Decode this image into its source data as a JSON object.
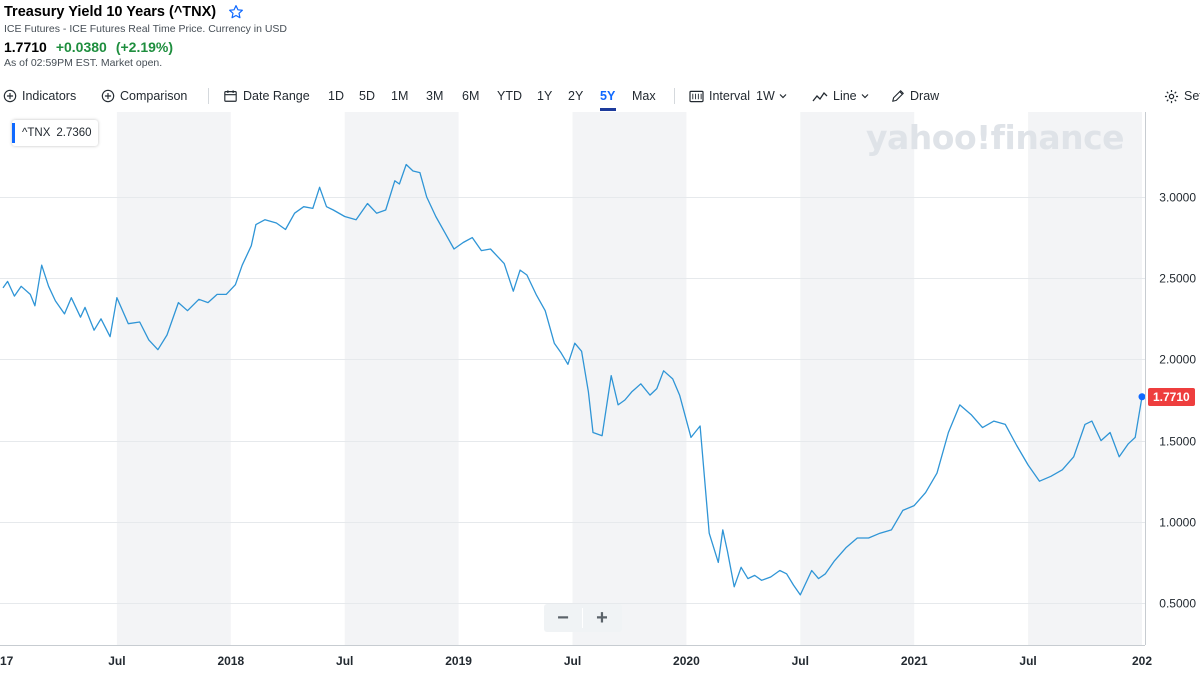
{
  "header": {
    "title": "Treasury Yield 10 Years (^TNX)",
    "subtitle": "ICE Futures - ICE Futures Real Time Price. Currency in USD",
    "price": "1.7710",
    "change": "+0.0380",
    "change_pct": "(+2.19%)",
    "as_of": "As of 02:59PM EST. Market open."
  },
  "toolbar": {
    "indicators": "Indicators",
    "comparison": "Comparison",
    "date_range": "Date Range",
    "ranges": [
      "1D",
      "5D",
      "1M",
      "3M",
      "6M",
      "YTD",
      "1Y",
      "2Y",
      "5Y",
      "Max"
    ],
    "active_range": "5Y",
    "interval_label": "Interval",
    "interval_value": "1W",
    "line_label": "Line",
    "draw_label": "Draw",
    "settings_label": "Settings"
  },
  "legend": {
    "symbol": "^TNX",
    "value": "2.7360"
  },
  "price_tag": "1.7710",
  "watermark": "yahoo!finance",
  "zoom": {
    "minus": "−",
    "plus": "+"
  },
  "colors": {
    "line": "#2f95d6",
    "accent": "#0f69ff",
    "up": "#1e8e3e",
    "tag": "#ee3e3e",
    "band": "#f3f4f6"
  },
  "chart_data": {
    "type": "line",
    "title": "Treasury Yield 10 Years (^TNX)",
    "x_domain": [
      2017.0,
      2022.0
    ],
    "ylim": [
      0.35,
      3.5
    ],
    "y_ticks": [
      "3.0000",
      "2.5000",
      "2.0000",
      "1.5000",
      "1.0000",
      "0.5000"
    ],
    "y_tick_values": [
      3.0,
      2.5,
      2.0,
      1.5,
      1.0,
      0.5
    ],
    "x_ticks": [
      {
        "label": "17",
        "t": 2017.0
      },
      {
        "label": "Jul",
        "t": 2017.5
      },
      {
        "label": "2018",
        "t": 2018.0
      },
      {
        "label": "Jul",
        "t": 2018.5
      },
      {
        "label": "2019",
        "t": 2019.0
      },
      {
        "label": "Jul",
        "t": 2019.5
      },
      {
        "label": "2020",
        "t": 2020.0
      },
      {
        "label": "Jul",
        "t": 2020.5
      },
      {
        "label": "2021",
        "t": 2021.0
      },
      {
        "label": "Jul",
        "t": 2021.5
      },
      {
        "label": "202",
        "t": 2022.0
      }
    ],
    "bands": [
      [
        2017.5,
        2018.0
      ],
      [
        2018.5,
        2019.0
      ],
      [
        2019.5,
        2020.0
      ],
      [
        2020.5,
        2021.0
      ],
      [
        2021.5,
        2022.0
      ]
    ],
    "series": [
      {
        "name": "^TNX",
        "x": [
          2017.0,
          2017.02,
          2017.05,
          2017.08,
          2017.12,
          2017.14,
          2017.17,
          2017.2,
          2017.23,
          2017.27,
          2017.3,
          2017.34,
          2017.36,
          2017.4,
          2017.43,
          2017.47,
          2017.5,
          2017.55,
          2017.6,
          2017.64,
          2017.68,
          2017.72,
          2017.77,
          2017.81,
          2017.86,
          2017.9,
          2017.94,
          2017.98,
          2018.02,
          2018.05,
          2018.09,
          2018.11,
          2018.15,
          2018.2,
          2018.24,
          2018.28,
          2018.32,
          2018.36,
          2018.39,
          2018.42,
          2018.45,
          2018.5,
          2018.55,
          2018.6,
          2018.64,
          2018.68,
          2018.72,
          2018.74,
          2018.77,
          2018.8,
          2018.83,
          2018.86,
          2018.9,
          2018.94,
          2018.98,
          2019.02,
          2019.06,
          2019.1,
          2019.14,
          2019.2,
          2019.24,
          2019.27,
          2019.3,
          2019.34,
          2019.38,
          2019.42,
          2019.45,
          2019.48,
          2019.51,
          2019.54,
          2019.57,
          2019.59,
          2019.63,
          2019.67,
          2019.7,
          2019.73,
          2019.76,
          2019.8,
          2019.84,
          2019.87,
          2019.9,
          2019.94,
          2019.97,
          2020.02,
          2020.06,
          2020.1,
          2020.14,
          2020.16,
          2020.18,
          2020.21,
          2020.24,
          2020.27,
          2020.3,
          2020.33,
          2020.37,
          2020.41,
          2020.44,
          2020.47,
          2020.5,
          2020.55,
          2020.58,
          2020.61,
          2020.65,
          2020.7,
          2020.75,
          2020.8,
          2020.85,
          2020.9,
          2020.95,
          2021.0,
          2021.05,
          2021.1,
          2021.15,
          2021.2,
          2021.25,
          2021.3,
          2021.35,
          2021.4,
          2021.45,
          2021.5,
          2021.55,
          2021.6,
          2021.65,
          2021.7,
          2021.75,
          2021.78,
          2021.82,
          2021.86,
          2021.9,
          2021.94,
          2021.97,
          2022.0
        ],
        "values": [
          2.44,
          2.48,
          2.39,
          2.45,
          2.4,
          2.33,
          2.58,
          2.45,
          2.36,
          2.28,
          2.38,
          2.26,
          2.32,
          2.18,
          2.25,
          2.14,
          2.38,
          2.22,
          2.23,
          2.12,
          2.06,
          2.15,
          2.35,
          2.3,
          2.37,
          2.35,
          2.4,
          2.4,
          2.46,
          2.58,
          2.7,
          2.83,
          2.86,
          2.84,
          2.8,
          2.9,
          2.94,
          2.93,
          3.06,
          2.94,
          2.92,
          2.88,
          2.86,
          2.96,
          2.9,
          2.92,
          3.1,
          3.08,
          3.2,
          3.16,
          3.15,
          3.0,
          2.88,
          2.78,
          2.68,
          2.72,
          2.75,
          2.67,
          2.68,
          2.59,
          2.42,
          2.55,
          2.52,
          2.4,
          2.3,
          2.1,
          2.04,
          1.97,
          2.1,
          2.05,
          1.8,
          1.55,
          1.53,
          1.9,
          1.72,
          1.75,
          1.8,
          1.85,
          1.78,
          1.82,
          1.93,
          1.88,
          1.78,
          1.52,
          1.59,
          0.93,
          0.75,
          0.95,
          0.82,
          0.6,
          0.72,
          0.65,
          0.67,
          0.64,
          0.66,
          0.7,
          0.68,
          0.61,
          0.55,
          0.7,
          0.65,
          0.68,
          0.76,
          0.84,
          0.9,
          0.9,
          0.93,
          0.95,
          1.07,
          1.1,
          1.18,
          1.3,
          1.55,
          1.72,
          1.66,
          1.58,
          1.62,
          1.6,
          1.47,
          1.35,
          1.25,
          1.28,
          1.32,
          1.4,
          1.6,
          1.62,
          1.5,
          1.55,
          1.4,
          1.48,
          1.52,
          1.77
        ]
      }
    ]
  }
}
